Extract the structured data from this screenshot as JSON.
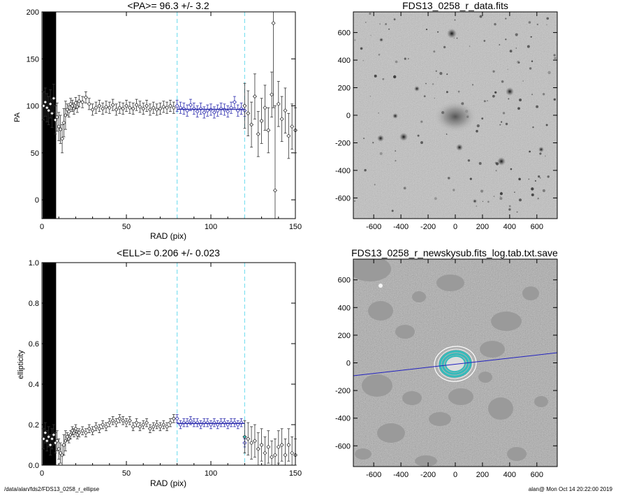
{
  "footer": {
    "path": "/data/alan/fds2/FDS13_0258_r_ellipse",
    "user_time": "alan@  Mon Oct 14 20:22:00 2019"
  },
  "colors": {
    "fit_line": "#3030b0",
    "cyan": "#7fe0f0",
    "black_band": "#000000",
    "teal": "#33bbbb",
    "blue_line": "#2020c0"
  },
  "chart_data": [
    {
      "type": "scatter",
      "title": "<PA>=  96.3 +/-   3.2",
      "xlabel": "RAD (pix)",
      "ylabel": "PA",
      "xlim": [
        0,
        150
      ],
      "ylim": [
        -20,
        200
      ],
      "xticks": [
        "0",
        "50",
        "100",
        "150"
      ],
      "yticks": [
        "0",
        "50",
        "100",
        "150",
        "200"
      ],
      "vlines": [
        80,
        120
      ],
      "fit": {
        "x_range": [
          80,
          120
        ],
        "value": 96.3
      },
      "series": [
        {
          "x": [
            1,
            2,
            3,
            4,
            5,
            6,
            7,
            8,
            9,
            10,
            11,
            12,
            13,
            14,
            15,
            16,
            17,
            18,
            19,
            20,
            21,
            22,
            24,
            26,
            28,
            30,
            32,
            34,
            36,
            38,
            40,
            42,
            44,
            46,
            48,
            50,
            52,
            54,
            56,
            58,
            60,
            62,
            64,
            66,
            68,
            70,
            72,
            74,
            76,
            78
          ],
          "y": [
            100,
            104,
            98,
            95,
            102,
            92,
            108,
            85,
            88,
            78,
            75,
            65,
            82,
            90,
            96,
            94,
            102,
            100,
            97,
            103,
            99,
            105,
            104,
            109,
            102,
            96,
            98,
            100,
            97,
            99,
            98,
            101,
            96,
            98,
            97,
            100,
            98,
            97,
            101,
            99,
            97,
            100,
            96,
            98,
            96,
            97,
            99,
            98,
            100,
            98
          ]
        },
        {
          "x": [
            80,
            82,
            84,
            86,
            88,
            90,
            92,
            94,
            96,
            98,
            100,
            102,
            104,
            106,
            108,
            110,
            112,
            114,
            116,
            118,
            120
          ],
          "y": [
            100,
            98,
            97,
            95,
            101,
            97,
            94,
            97,
            93,
            95,
            96,
            93,
            95,
            97,
            96,
            94,
            98,
            104,
            95,
            97,
            95
          ]
        },
        {
          "x": [
            120,
            122,
            124,
            126,
            128,
            130,
            132,
            134,
            136,
            137,
            138,
            140,
            142,
            144,
            146,
            148,
            150
          ],
          "y": [
            100,
            92,
            80,
            110,
            70,
            84,
            98,
            74,
            112,
            188,
            10,
            102,
            86,
            95,
            68,
            78,
            74
          ]
        }
      ]
    },
    {
      "type": "scatter",
      "title": "<ELL>= 0.206 +/-  0.023",
      "xlabel": "RAD (pix)",
      "ylabel": "ellipticity",
      "xlim": [
        0,
        150
      ],
      "ylim": [
        0,
        1.0
      ],
      "xticks": [
        "0",
        "50",
        "100",
        "150"
      ],
      "yticks": [
        "0.0",
        "0.2",
        "0.4",
        "0.6",
        "0.8",
        "1.0"
      ],
      "vlines": [
        80,
        120
      ],
      "fit": {
        "x_range": [
          80,
          120
        ],
        "value": 0.206
      },
      "series": [
        {
          "x": [
            1,
            2,
            3,
            4,
            5,
            6,
            7,
            8,
            9,
            10,
            11,
            12,
            13,
            14,
            15,
            16,
            17,
            18,
            19,
            20,
            21,
            22,
            24,
            26,
            28,
            30,
            32,
            34,
            36,
            38,
            40,
            42,
            44,
            46,
            48,
            50,
            52,
            54,
            56,
            58,
            60,
            62,
            64,
            66,
            68,
            70,
            72,
            74,
            76,
            78
          ],
          "y": [
            0.13,
            0.16,
            0.12,
            0.14,
            0.1,
            0.13,
            0.15,
            0.11,
            0.12,
            0.08,
            0.06,
            0.05,
            0.1,
            0.12,
            0.14,
            0.13,
            0.15,
            0.17,
            0.16,
            0.18,
            0.15,
            0.16,
            0.17,
            0.16,
            0.18,
            0.17,
            0.19,
            0.18,
            0.2,
            0.19,
            0.21,
            0.22,
            0.21,
            0.23,
            0.22,
            0.21,
            0.22,
            0.19,
            0.21,
            0.19,
            0.2,
            0.21,
            0.18,
            0.19,
            0.2,
            0.19,
            0.2,
            0.19,
            0.21,
            0.23
          ]
        },
        {
          "x": [
            80,
            82,
            84,
            86,
            88,
            90,
            92,
            94,
            96,
            98,
            100,
            102,
            104,
            106,
            108,
            110,
            112,
            114,
            116,
            118,
            120
          ],
          "y": [
            0.23,
            0.2,
            0.21,
            0.21,
            0.22,
            0.21,
            0.21,
            0.2,
            0.21,
            0.21,
            0.2,
            0.21,
            0.2,
            0.21,
            0.21,
            0.2,
            0.21,
            0.21,
            0.2,
            0.21,
            0.11
          ]
        },
        {
          "x": [
            120,
            122,
            124,
            126,
            128,
            130,
            132,
            134,
            136,
            138,
            140,
            142,
            144,
            146,
            148,
            150
          ],
          "y": [
            0.14,
            0.13,
            0.11,
            0.12,
            0.08,
            0.1,
            0.06,
            0.09,
            0.04,
            0.05,
            0.09,
            0.1,
            0.05,
            0.1,
            0.06,
            0.05
          ]
        }
      ]
    },
    {
      "type": "heatmap",
      "title": "FDS13_0258_r_data.fits",
      "xlim": [
        -750,
        750
      ],
      "ylim": [
        -750,
        750
      ],
      "xticks": [
        "-600",
        "-400",
        "-200",
        "0",
        "200",
        "400",
        "600"
      ],
      "yticks": [
        "-600",
        "-400",
        "-200",
        "0",
        "200",
        "400",
        "600"
      ]
    },
    {
      "type": "heatmap",
      "title": "FDS13_0258_r_newskysub.fits_log.tab.txt.save",
      "xlim": [
        -750,
        750
      ],
      "ylim": [
        -750,
        750
      ],
      "xticks": [
        "-600",
        "-400",
        "-200",
        "0",
        "200",
        "400",
        "600"
      ],
      "yticks": [
        "-600",
        "-400",
        "-200",
        "0",
        "200",
        "400",
        "600"
      ]
    }
  ]
}
